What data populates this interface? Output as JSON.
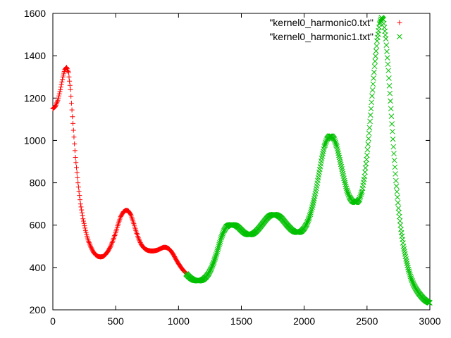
{
  "chart_data": {
    "type": "scatter",
    "title": "",
    "xlabel": "",
    "ylabel": "",
    "xlim": [
      0,
      3000
    ],
    "ylim": [
      200,
      1600
    ],
    "xticks": [
      0,
      500,
      1000,
      1500,
      2000,
      2500,
      3000
    ],
    "yticks": [
      200,
      400,
      600,
      800,
      1000,
      1200,
      1400,
      1600
    ],
    "grid": false,
    "legend_position": "top-right",
    "series": [
      {
        "name": "\"kernel0_harmonic0.txt\"",
        "marker": "+",
        "color": "#ff0000",
        "points": [
          [
            0,
            1150
          ],
          [
            20,
            1160
          ],
          [
            40,
            1190
          ],
          [
            60,
            1240
          ],
          [
            80,
            1300
          ],
          [
            95,
            1335
          ],
          [
            110,
            1345
          ],
          [
            125,
            1320
          ],
          [
            140,
            1240
          ],
          [
            160,
            1080
          ],
          [
            180,
            920
          ],
          [
            200,
            800
          ],
          [
            220,
            700
          ],
          [
            240,
            630
          ],
          [
            260,
            575
          ],
          [
            280,
            530
          ],
          [
            300,
            500
          ],
          [
            320,
            475
          ],
          [
            340,
            460
          ],
          [
            360,
            452
          ],
          [
            380,
            450
          ],
          [
            400,
            452
          ],
          [
            420,
            462
          ],
          [
            440,
            478
          ],
          [
            460,
            500
          ],
          [
            480,
            530
          ],
          [
            500,
            565
          ],
          [
            520,
            605
          ],
          [
            540,
            640
          ],
          [
            560,
            662
          ],
          [
            580,
            670
          ],
          [
            600,
            668
          ],
          [
            620,
            650
          ],
          [
            640,
            615
          ],
          [
            660,
            575
          ],
          [
            680,
            540
          ],
          [
            700,
            512
          ],
          [
            720,
            495
          ],
          [
            740,
            485
          ],
          [
            760,
            480
          ],
          [
            780,
            478
          ],
          [
            800,
            478
          ],
          [
            820,
            480
          ],
          [
            840,
            484
          ],
          [
            860,
            490
          ],
          [
            880,
            495
          ],
          [
            900,
            495
          ],
          [
            920,
            490
          ],
          [
            940,
            478
          ],
          [
            960,
            460
          ],
          [
            980,
            438
          ],
          [
            1000,
            418
          ],
          [
            1020,
            400
          ],
          [
            1040,
            385
          ],
          [
            1055,
            376
          ]
        ]
      },
      {
        "name": "\"kernel0_harmonic1.txt\"",
        "marker": "x",
        "color": "#00c000",
        "points": [
          [
            1060,
            370
          ],
          [
            1080,
            358
          ],
          [
            1100,
            348
          ],
          [
            1120,
            341
          ],
          [
            1140,
            338
          ],
          [
            1160,
            337
          ],
          [
            1180,
            339
          ],
          [
            1200,
            345
          ],
          [
            1220,
            356
          ],
          [
            1240,
            372
          ],
          [
            1260,
            395
          ],
          [
            1280,
            425
          ],
          [
            1300,
            460
          ],
          [
            1320,
            500
          ],
          [
            1340,
            540
          ],
          [
            1360,
            572
          ],
          [
            1380,
            592
          ],
          [
            1400,
            600
          ],
          [
            1420,
            602
          ],
          [
            1440,
            601
          ],
          [
            1460,
            597
          ],
          [
            1480,
            588
          ],
          [
            1500,
            576
          ],
          [
            1520,
            565
          ],
          [
            1540,
            558
          ],
          [
            1560,
            555
          ],
          [
            1580,
            556
          ],
          [
            1600,
            562
          ],
          [
            1620,
            572
          ],
          [
            1640,
            585
          ],
          [
            1660,
            600
          ],
          [
            1680,
            615
          ],
          [
            1700,
            630
          ],
          [
            1720,
            642
          ],
          [
            1740,
            648
          ],
          [
            1760,
            650
          ],
          [
            1780,
            648
          ],
          [
            1800,
            642
          ],
          [
            1820,
            632
          ],
          [
            1840,
            618
          ],
          [
            1860,
            603
          ],
          [
            1880,
            590
          ],
          [
            1900,
            578
          ],
          [
            1920,
            570
          ],
          [
            1940,
            566
          ],
          [
            1960,
            566
          ],
          [
            1980,
            572
          ],
          [
            2000,
            585
          ],
          [
            2020,
            605
          ],
          [
            2040,
            635
          ],
          [
            2060,
            675
          ],
          [
            2080,
            725
          ],
          [
            2100,
            785
          ],
          [
            2120,
            850
          ],
          [
            2140,
            915
          ],
          [
            2160,
            970
          ],
          [
            2180,
            1005
          ],
          [
            2200,
            1020
          ],
          [
            2220,
            1020
          ],
          [
            2240,
            1005
          ],
          [
            2260,
            970
          ],
          [
            2280,
            920
          ],
          [
            2300,
            865
          ],
          [
            2320,
            810
          ],
          [
            2340,
            765
          ],
          [
            2360,
            733
          ],
          [
            2380,
            715
          ],
          [
            2400,
            708
          ],
          [
            2420,
            708
          ],
          [
            2440,
            722
          ],
          [
            2460,
            760
          ],
          [
            2480,
            830
          ],
          [
            2500,
            930
          ],
          [
            2520,
            1060
          ],
          [
            2540,
            1210
          ],
          [
            2560,
            1350
          ],
          [
            2580,
            1470
          ],
          [
            2600,
            1550
          ],
          [
            2615,
            1580
          ],
          [
            2630,
            1570
          ],
          [
            2650,
            1480
          ],
          [
            2670,
            1330
          ],
          [
            2690,
            1150
          ],
          [
            2710,
            970
          ],
          [
            2730,
            810
          ],
          [
            2750,
            680
          ],
          [
            2770,
            580
          ],
          [
            2790,
            500
          ],
          [
            2810,
            440
          ],
          [
            2830,
            390
          ],
          [
            2850,
            350
          ],
          [
            2870,
            320
          ],
          [
            2890,
            298
          ],
          [
            2910,
            280
          ],
          [
            2930,
            265
          ],
          [
            2950,
            252
          ],
          [
            2970,
            242
          ],
          [
            2990,
            235
          ],
          [
            3000,
            233
          ]
        ]
      }
    ]
  }
}
